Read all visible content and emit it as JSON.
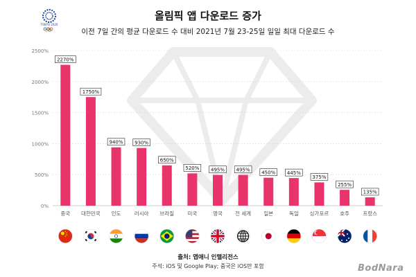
{
  "header": {
    "title": "올림픽 앱 다운로드 증가",
    "subtitle": "이전 7일 간의 평균 다운로드 수 대비 2021년 7월 23-25일 일일 최대 다운로드 수"
  },
  "logo": {
    "text": "TOKYO 2020",
    "icon": "olympic-emblem-icon"
  },
  "chart_data": {
    "type": "bar",
    "categories": [
      "중국",
      "대한민국",
      "인도",
      "러시아",
      "브라질",
      "미국",
      "영국",
      "전 세계",
      "일본",
      "독일",
      "싱가포르",
      "호주",
      "프랑스"
    ],
    "values": [
      2270,
      1750,
      940,
      930,
      650,
      520,
      495,
      495,
      450,
      445,
      375,
      255,
      135
    ],
    "data_labels": [
      "2270%",
      "1750%",
      "940%",
      "930%",
      "650%",
      "520%",
      "495%",
      "495%",
      "450%",
      "445%",
      "375%",
      "255%",
      "135%"
    ],
    "y_ticks": [
      0,
      500,
      1000,
      1500,
      2000,
      2500
    ],
    "y_tick_labels": [
      "0%",
      "500%",
      "1000%",
      "1500%",
      "2000%",
      "2500%"
    ],
    "ylim": [
      0,
      2500
    ],
    "grid": true,
    "bar_color": "#e8336b",
    "flags": [
      "cn",
      "kr",
      "in",
      "ru",
      "br",
      "us",
      "gb",
      "world",
      "jp",
      "de",
      "sg",
      "au",
      "fr"
    ]
  },
  "footer": {
    "source": "출처: 앱애니 인텔리전스",
    "note": "주석: iOS 및 Google Play; 중국은 iOS만 포함"
  },
  "watermark": "BodNara"
}
